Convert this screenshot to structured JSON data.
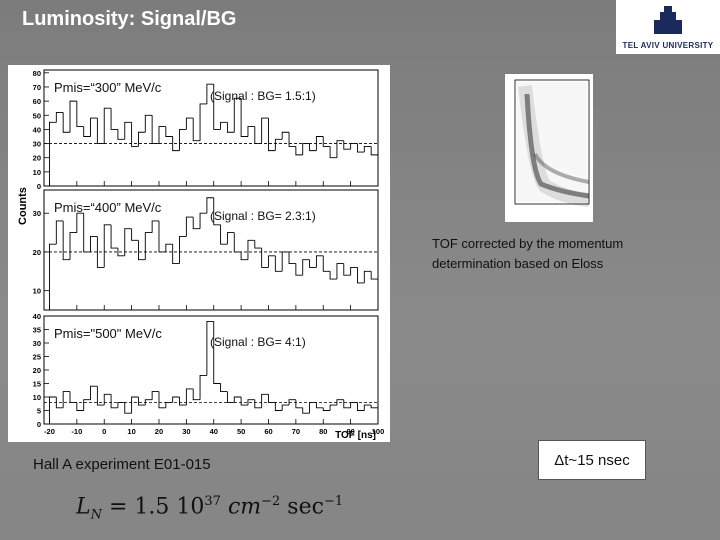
{
  "header": {
    "title": "Luminosity: Signal/BG",
    "logo_text": "TEL AVIV UNIVERSITY"
  },
  "chart_data": [
    {
      "type": "histogram",
      "label": "Pmis=“300” MeV/c",
      "ratio": "(Signal : BG= 1.5:1)",
      "bins": [
        -20,
        -17.5,
        -15,
        -12.5,
        -10,
        -7.5,
        -5,
        -2.5,
        0,
        2.5,
        5,
        7.5,
        10,
        12.5,
        15,
        17.5,
        20,
        22.5,
        25,
        27.5,
        30,
        32.5,
        35,
        37.5,
        40,
        42.5,
        45,
        47.5,
        50,
        52.5,
        55,
        57.5,
        60,
        62.5,
        65,
        67.5,
        70,
        72.5,
        75,
        77.5,
        80,
        82.5,
        85,
        87.5,
        90,
        92.5,
        95,
        97.5,
        100
      ],
      "values": [
        45,
        52,
        38,
        60,
        42,
        35,
        48,
        30,
        55,
        40,
        33,
        45,
        28,
        38,
        50,
        30,
        42,
        35,
        25,
        40,
        48,
        32,
        58,
        72,
        40,
        45,
        38,
        62,
        35,
        42,
        30,
        48,
        25,
        33,
        38,
        28,
        22,
        30,
        25,
        35,
        28,
        20,
        32,
        26,
        30,
        24,
        28,
        22
      ],
      "bg_level": 30,
      "xlim": [
        -22,
        100
      ],
      "ylim": [
        0,
        82
      ],
      "yticks": [
        0,
        10,
        20,
        30,
        40,
        50,
        60,
        70,
        80
      ],
      "color": "#000000"
    },
    {
      "type": "histogram",
      "label": "Pmis=“400” MeV/c",
      "ratio": "(Signal : BG= 2.3:1)",
      "ylabel": "Counts",
      "bins": [
        -20,
        -17.5,
        -15,
        -12.5,
        -10,
        -7.5,
        -5,
        -2.5,
        0,
        2.5,
        5,
        7.5,
        10,
        12.5,
        15,
        17.5,
        20,
        22.5,
        25,
        27.5,
        30,
        32.5,
        35,
        37.5,
        40,
        42.5,
        45,
        47.5,
        50,
        52.5,
        55,
        57.5,
        60,
        62.5,
        65,
        67.5,
        70,
        72.5,
        75,
        77.5,
        80,
        82.5,
        85,
        87.5,
        90,
        92.5,
        95,
        97.5,
        100
      ],
      "values": [
        22,
        28,
        18,
        25,
        30,
        20,
        24,
        16,
        27,
        21,
        19,
        26,
        23,
        18,
        25,
        28,
        20,
        22,
        17,
        24,
        29,
        26,
        30,
        34,
        27,
        22,
        25,
        20,
        18,
        23,
        21,
        16,
        19,
        15,
        20,
        17,
        14,
        18,
        16,
        19,
        15,
        13,
        17,
        14,
        16,
        12,
        15,
        13
      ],
      "bg_level": 20,
      "xlim": [
        -22,
        100
      ],
      "ylim": [
        5,
        36
      ],
      "yticks": [
        10,
        20,
        30
      ],
      "color": "#000000"
    },
    {
      "type": "histogram",
      "label": "Pmis=\"500\" MeV/c",
      "ratio": "(Signal : BG= 4:1)",
      "xlabel": "TOF [ns]",
      "bins": [
        -20,
        -17.5,
        -15,
        -12.5,
        -10,
        -7.5,
        -5,
        -2.5,
        0,
        2.5,
        5,
        7.5,
        10,
        12.5,
        15,
        17.5,
        20,
        22.5,
        25,
        27.5,
        30,
        32.5,
        35,
        37.5,
        40,
        42.5,
        45,
        47.5,
        50,
        52.5,
        55,
        57.5,
        60,
        62.5,
        65,
        67.5,
        70,
        72.5,
        75,
        77.5,
        80,
        82.5,
        85,
        87.5,
        90,
        92.5,
        95,
        97.5,
        100
      ],
      "values": [
        10,
        6,
        12,
        8,
        5,
        9,
        14,
        7,
        11,
        6,
        8,
        4,
        10,
        7,
        9,
        12,
        6,
        8,
        10,
        7,
        13,
        9,
        18,
        38,
        15,
        12,
        8,
        10,
        7,
        9,
        6,
        11,
        8,
        5,
        7,
        9,
        6,
        4,
        8,
        6,
        5,
        7,
        9,
        6,
        8,
        5,
        7,
        6
      ],
      "bg_level": 8,
      "xlim": [
        -22,
        100
      ],
      "ylim": [
        0,
        40
      ],
      "yticks": [
        0,
        5,
        10,
        15,
        20,
        25,
        30,
        35,
        40
      ],
      "xticks": [
        -20,
        -10,
        0,
        10,
        20,
        30,
        40,
        50,
        60,
        70,
        80,
        90,
        100
      ],
      "color": "#000000"
    }
  ],
  "notes": {
    "tof_line1": "TOF corrected by  the momentum",
    "tof_line2": "determination based on Eloss",
    "experiment": "Hall A  experiment E01-015",
    "resolution": "Δt~15 nsec"
  },
  "formula": {
    "symbol": "L",
    "subscript": "N",
    "mantissa": "= 1.5 10",
    "exp1": "37",
    "unit1": "cm",
    "exp2": "−2",
    "unit2": "sec",
    "exp3": "−1"
  }
}
